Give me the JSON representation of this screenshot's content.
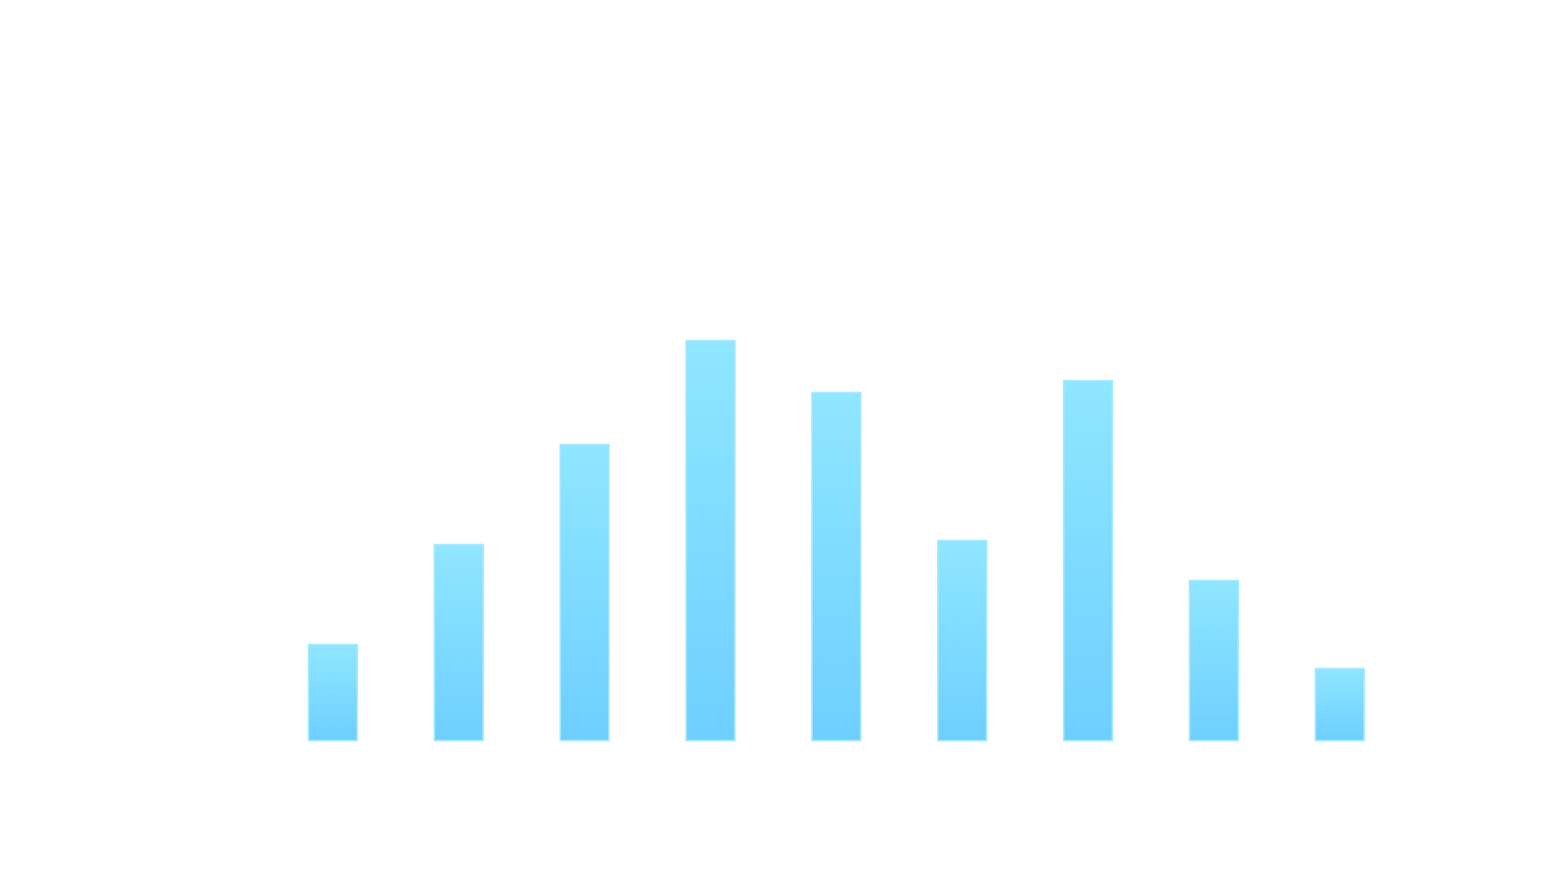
{
  "chart_data": {
    "type": "bar",
    "categories": [
      "",
      "",
      "",
      "",
      "",
      "",
      "",
      "",
      ""
    ],
    "values": [
      12,
      24.5,
      37,
      50,
      43.5,
      25,
      45,
      20,
      9
    ],
    "ylim": [
      0,
      100
    ],
    "grid": false,
    "legend": "none",
    "colors": {
      "bar_top": "#8FE6FF",
      "bar_bottom": "#6ECFFF",
      "bar_edge": "#A6E9FF",
      "background": "#FFFFFF"
    }
  }
}
